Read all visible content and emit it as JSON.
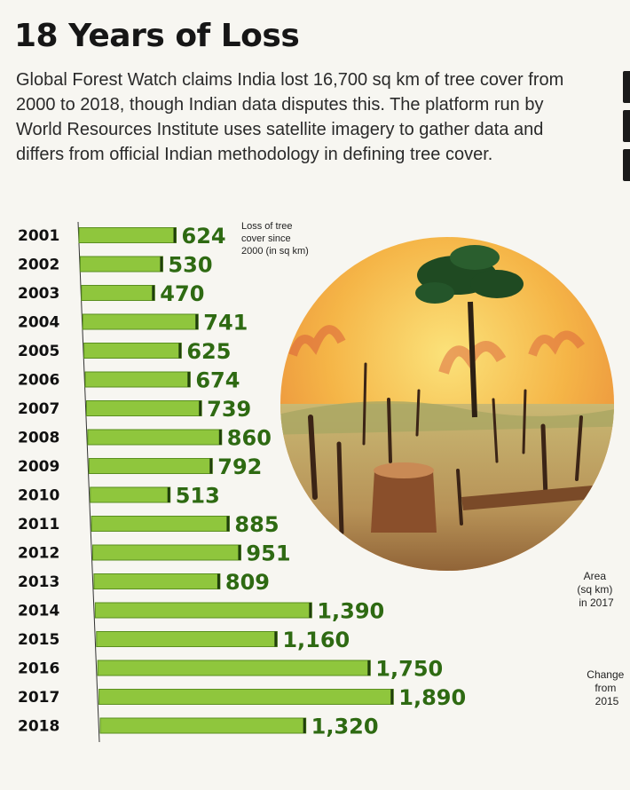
{
  "title": "18 Years of Loss",
  "intro": "Global Forest Watch claims India lost 16,700 sq km of tree cover from 2000 to 2018, though Indian data disputes this. The platform run by World Resources Institute uses satellite imagery to gather data and differs from official Indian methodology in defining tree cover.",
  "legend_note": [
    "Loss of tree",
    "cover since",
    "2000 (in sq km)"
  ],
  "side_notes": {
    "area": [
      "Area",
      "(sq km)",
      "in 2017"
    ],
    "change": [
      "Change",
      "from",
      "2015"
    ]
  },
  "colors": {
    "bar": "#8fc63d",
    "bar_edge": "#5a8f1f",
    "value": "#2e6a12"
  },
  "chart_data": {
    "type": "bar",
    "orientation": "horizontal",
    "categories": [
      "2001",
      "2002",
      "2003",
      "2004",
      "2005",
      "2006",
      "2007",
      "2008",
      "2009",
      "2010",
      "2011",
      "2012",
      "2013",
      "2014",
      "2015",
      "2016",
      "2017",
      "2018"
    ],
    "values": [
      624,
      530,
      470,
      741,
      625,
      674,
      739,
      860,
      792,
      513,
      885,
      951,
      809,
      1390,
      1160,
      1750,
      1890,
      1320
    ],
    "value_labels": [
      "624",
      "530",
      "470",
      "741",
      "625",
      "674",
      "739",
      "860",
      "792",
      "513",
      "885",
      "951",
      "809",
      "1,390",
      "1,160",
      "1,750",
      "1,890",
      "1,320"
    ],
    "title": "18 Years of Loss",
    "unit_note": "Loss of tree cover since 2000 (in sq km)",
    "xlim": [
      0,
      1900
    ]
  }
}
